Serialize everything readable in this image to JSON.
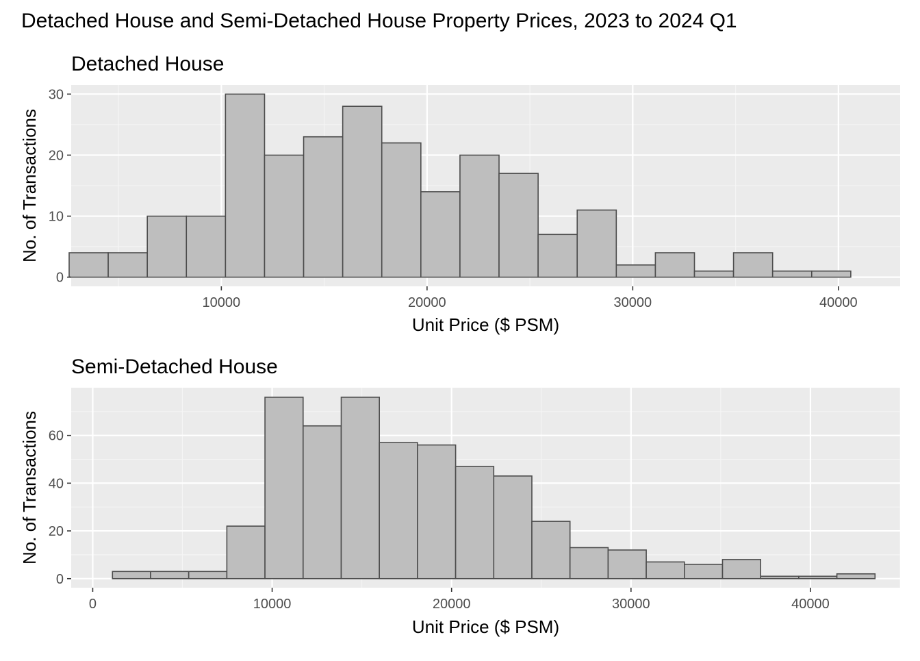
{
  "title": "Detached House and Semi-Detached House Property Prices, 2023 to 2024 Q1",
  "colors": {
    "panel_background": "#ebebeb",
    "grid_major": "#ffffff",
    "grid_minor": "#f5f5f5",
    "bar_fill": "#bebebe",
    "bar_outline": "#4d4d4d",
    "tick_text": "#4d4d4d",
    "tick_mark": "#333333"
  },
  "chart_data": [
    {
      "type": "bar",
      "title": "Detached House",
      "xlabel": "Unit Price ($ PSM)",
      "ylabel": "No. of Transactions",
      "grid": true,
      "xlim": [
        2700,
        43000
      ],
      "ylim": [
        -1.5,
        31.5
      ],
      "x_ticks": [
        10000,
        20000,
        30000,
        40000
      ],
      "x_tick_labels": [
        "10000",
        "20000",
        "30000",
        "40000"
      ],
      "y_ticks": [
        0,
        10,
        20,
        30
      ],
      "y_tick_labels": [
        "0",
        "10",
        "20",
        "30"
      ],
      "bins": [
        {
          "x0": 2600,
          "x1": 4500,
          "count": 4
        },
        {
          "x0": 4500,
          "x1": 6400,
          "count": 4
        },
        {
          "x0": 6400,
          "x1": 8300,
          "count": 10
        },
        {
          "x0": 8300,
          "x1": 10200,
          "count": 10
        },
        {
          "x0": 10200,
          "x1": 12100,
          "count": 30
        },
        {
          "x0": 12100,
          "x1": 14000,
          "count": 20
        },
        {
          "x0": 14000,
          "x1": 15900,
          "count": 23
        },
        {
          "x0": 15900,
          "x1": 17800,
          "count": 28
        },
        {
          "x0": 17800,
          "x1": 19700,
          "count": 22
        },
        {
          "x0": 19700,
          "x1": 21600,
          "count": 14
        },
        {
          "x0": 21600,
          "x1": 23500,
          "count": 20
        },
        {
          "x0": 23500,
          "x1": 25400,
          "count": 17
        },
        {
          "x0": 25400,
          "x1": 27300,
          "count": 7
        },
        {
          "x0": 27300,
          "x1": 29200,
          "count": 11
        },
        {
          "x0": 29200,
          "x1": 31100,
          "count": 2
        },
        {
          "x0": 31100,
          "x1": 33000,
          "count": 4
        },
        {
          "x0": 33000,
          "x1": 34900,
          "count": 1
        },
        {
          "x0": 34900,
          "x1": 36800,
          "count": 4
        },
        {
          "x0": 36800,
          "x1": 38700,
          "count": 1
        },
        {
          "x0": 38700,
          "x1": 40600,
          "count": 1
        }
      ]
    },
    {
      "type": "bar",
      "title": "Semi-Detached House",
      "xlabel": "Unit Price ($ PSM)",
      "ylabel": "No. of Transactions",
      "grid": true,
      "xlim": [
        -1200,
        45000
      ],
      "ylim": [
        -3.8,
        80
      ],
      "x_ticks": [
        0,
        10000,
        20000,
        30000,
        40000
      ],
      "x_tick_labels": [
        "0",
        "10000",
        "20000",
        "30000",
        "40000"
      ],
      "y_ticks": [
        0,
        20,
        40,
        60
      ],
      "y_tick_labels": [
        "0",
        "20",
        "40",
        "60"
      ],
      "bins": [
        {
          "x0": 1100,
          "x1": 3225,
          "count": 3
        },
        {
          "x0": 3225,
          "x1": 5350,
          "count": 3
        },
        {
          "x0": 5350,
          "x1": 7475,
          "count": 3
        },
        {
          "x0": 7475,
          "x1": 9600,
          "count": 22
        },
        {
          "x0": 9600,
          "x1": 11725,
          "count": 76
        },
        {
          "x0": 11725,
          "x1": 13850,
          "count": 64
        },
        {
          "x0": 13850,
          "x1": 15975,
          "count": 76
        },
        {
          "x0": 15975,
          "x1": 18100,
          "count": 57
        },
        {
          "x0": 18100,
          "x1": 20225,
          "count": 56
        },
        {
          "x0": 20225,
          "x1": 22350,
          "count": 47
        },
        {
          "x0": 22350,
          "x1": 24475,
          "count": 43
        },
        {
          "x0": 24475,
          "x1": 26600,
          "count": 24
        },
        {
          "x0": 26600,
          "x1": 28725,
          "count": 13
        },
        {
          "x0": 28725,
          "x1": 30850,
          "count": 12
        },
        {
          "x0": 30850,
          "x1": 32975,
          "count": 7
        },
        {
          "x0": 32975,
          "x1": 35100,
          "count": 6
        },
        {
          "x0": 35100,
          "x1": 37225,
          "count": 8
        },
        {
          "x0": 37225,
          "x1": 39350,
          "count": 1
        },
        {
          "x0": 39350,
          "x1": 41475,
          "count": 1
        },
        {
          "x0": 41475,
          "x1": 43600,
          "count": 2
        }
      ]
    }
  ]
}
